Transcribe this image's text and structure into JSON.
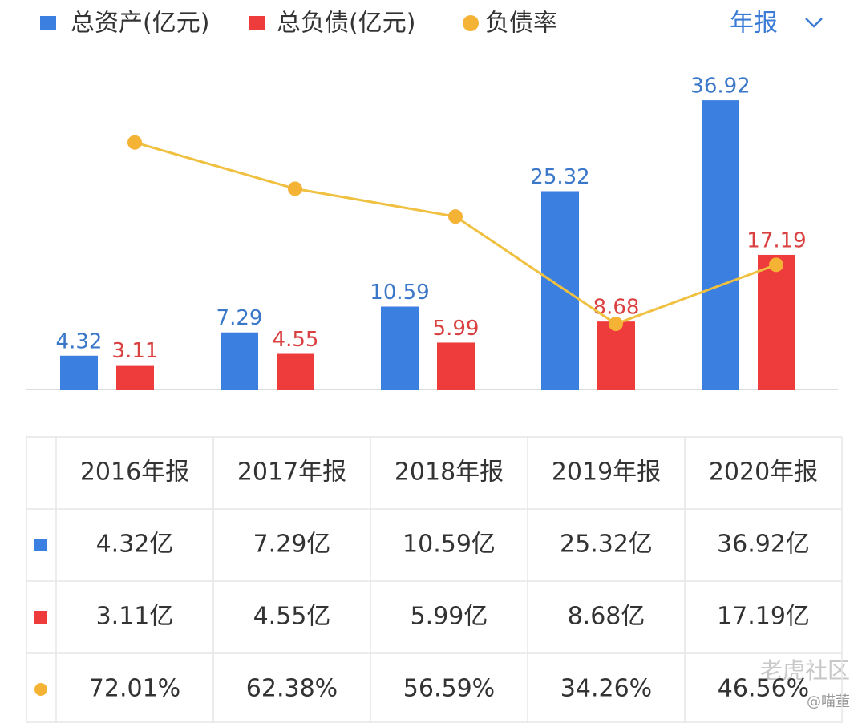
{
  "chart_data": {
    "type": "bar-line",
    "categories": [
      "2016年报",
      "2017年报",
      "2018年报",
      "2019年报",
      "2020年报"
    ],
    "series": [
      {
        "name": "总资产(亿元)",
        "color": "#3b7fe0",
        "type": "bar",
        "values": [
          4.32,
          7.29,
          10.59,
          25.32,
          36.92
        ],
        "value_labels": [
          "4.32亿",
          "7.29亿",
          "10.59亿",
          "25.32亿",
          "36.92亿"
        ]
      },
      {
        "name": "总负债(亿元)",
        "color": "#ee3b3b",
        "type": "bar",
        "values": [
          3.11,
          4.55,
          5.99,
          8.68,
          17.19
        ],
        "value_labels": [
          "3.11亿",
          "4.55亿",
          "5.99亿",
          "8.68亿",
          "17.19亿"
        ]
      },
      {
        "name": "负债率",
        "color": "#f5b335",
        "type": "line",
        "axis": "y2",
        "values": [
          72.01,
          62.38,
          56.59,
          34.26,
          46.56
        ],
        "value_labels": [
          "72.01%",
          "62.38%",
          "56.59%",
          "34.26%",
          "46.56%"
        ]
      }
    ],
    "ylim": [
      0,
      40
    ],
    "y2lim": [
      20.6,
      85.8
    ]
  },
  "period_selector": "年报",
  "watermark": {
    "text": "老虎社区",
    "handle": "@喵董"
  }
}
